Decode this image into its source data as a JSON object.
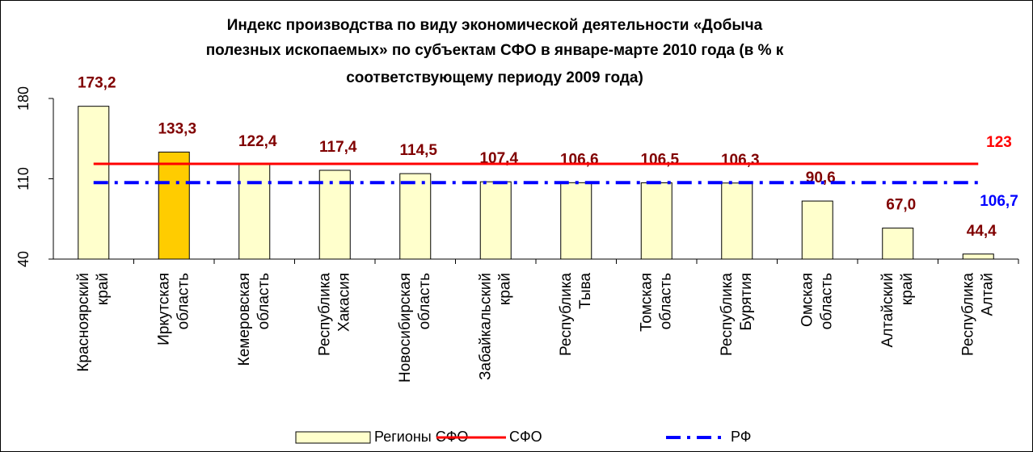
{
  "chart_data": {
    "type": "bar",
    "title": [
      "Индекс производства по виду экономической деятельности «Добыча",
      "полезных ископаемых» по субъектам СФО в январе-марте 2010 года (в % к",
      "соответствующему периоду 2009 года)"
    ],
    "categories": [
      [
        "Красноярский",
        "край"
      ],
      [
        "Иркутская",
        "область"
      ],
      [
        "Кемеровская",
        "область"
      ],
      [
        "Республика",
        "Хакасия"
      ],
      [
        "Новосибирская",
        "область"
      ],
      [
        "Забайкальский",
        "край"
      ],
      [
        "Республика",
        "Тыва"
      ],
      [
        "Томская",
        "область"
      ],
      [
        "Республика",
        "Бурятия"
      ],
      [
        "Омская",
        "область"
      ],
      [
        "Алтайский",
        "край"
      ],
      [
        "Республика",
        "Алтай"
      ]
    ],
    "series": [
      {
        "name": "Регионы СФО",
        "type": "bar",
        "color": "#ffffcc",
        "colors": [
          "#ffffcc",
          "#ffcc00",
          "#ffffcc",
          "#ffffcc",
          "#ffffcc",
          "#ffffcc",
          "#ffffcc",
          "#ffffcc",
          "#ffffcc",
          "#ffffcc",
          "#ffffcc",
          "#ffffcc"
        ],
        "values": [
          173.2,
          133.3,
          122.4,
          117.4,
          114.5,
          107.4,
          106.6,
          106.5,
          106.3,
          90.6,
          67.0,
          44.4
        ],
        "value_labels": [
          "173,2",
          "133,3",
          "122,4",
          "117,4",
          "114,5",
          "107,4",
          "106,6",
          "106,5",
          "106,3",
          "90,6",
          "67,0",
          "44,4"
        ]
      },
      {
        "name": "СФО",
        "type": "line",
        "color": "#ff0000",
        "dash": "solid",
        "value": 123
      },
      {
        "name": "РФ",
        "type": "line",
        "color": "#0000ff",
        "dash": "dashdot",
        "value": 106.7,
        "value_label": "106,7"
      }
    ],
    "ylim": [
      40,
      180
    ],
    "yticks": [
      40,
      110,
      180
    ]
  }
}
